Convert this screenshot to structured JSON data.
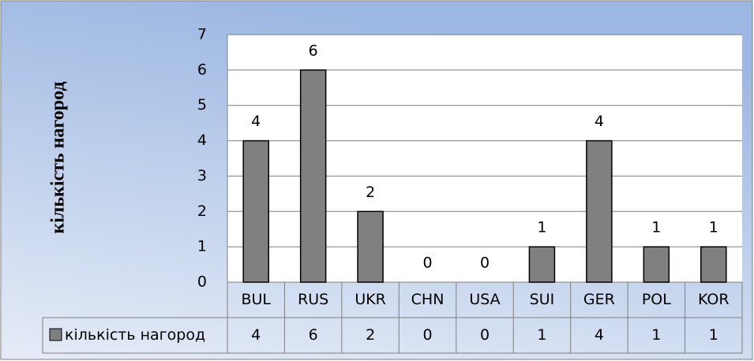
{
  "chart_data": {
    "type": "bar",
    "y_axis_label": "кількість нагород",
    "categories": [
      "BUL",
      "RUS",
      "UKR",
      "CHN",
      "USA",
      "SUI",
      "GER",
      "POL",
      "KOR"
    ],
    "series": [
      {
        "name": "кількість нагород",
        "color": "#808080",
        "values": [
          4,
          6,
          2,
          0,
          0,
          1,
          4,
          1,
          1
        ]
      }
    ],
    "ylim": [
      0,
      7
    ],
    "yticks": [
      0,
      1,
      2,
      3,
      4,
      5,
      6,
      7
    ],
    "grid": true,
    "data_table": true
  }
}
